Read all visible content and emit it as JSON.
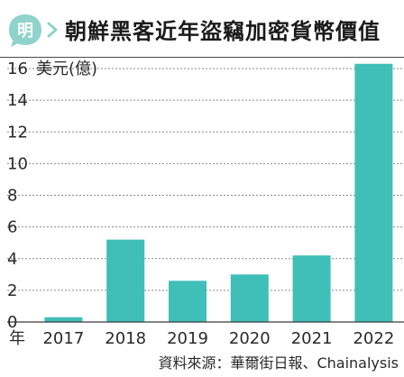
{
  "header": {
    "title": "朝鮮黑客近年盜竊加密貨幣價值",
    "logo_glyph": "明",
    "logo_color": "#8fd3cb"
  },
  "chart_data": {
    "type": "bar",
    "title": "朝鮮黑客近年盜竊加密貨幣價值",
    "xlabel": "年",
    "ylabel": "美元(億)",
    "categories": [
      "2017",
      "2018",
      "2019",
      "2020",
      "2021",
      "2022"
    ],
    "values": [
      0.3,
      5.2,
      2.6,
      3.0,
      4.2,
      16.3
    ],
    "ylim": [
      0,
      16
    ],
    "yticks": [
      0,
      2,
      4,
      6,
      8,
      10,
      12,
      14,
      16
    ],
    "grid": "horizontal",
    "bar_color": "#3fbfb7"
  },
  "source": {
    "text": "資料來源：華爾街日報、Chainalysis"
  }
}
